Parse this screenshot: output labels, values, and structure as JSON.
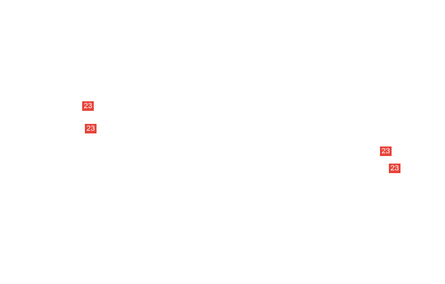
{
  "badge_color": "#e8453c",
  "badges": [
    {
      "label": "23"
    },
    {
      "label": "23"
    },
    {
      "label": "23"
    },
    {
      "label": "23"
    }
  ]
}
